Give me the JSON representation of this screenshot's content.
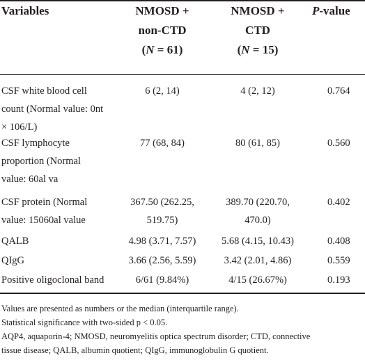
{
  "header": {
    "col_variables": "Variables",
    "col_nonctd": [
      "NMOSD +",
      "non-CTD",
      "(N = 61)"
    ],
    "col_ctd": [
      "NMOSD +",
      "CTD",
      "(N = 15)"
    ],
    "col_p": "P-value"
  },
  "rows": [
    {
      "variable": [
        "CSF white blood cell",
        "count (Normal value: 0nt",
        "× 106/L)"
      ],
      "nonctd": [
        "6 (2, 14)"
      ],
      "ctd": [
        "4 (2, 12)"
      ],
      "p": "0.764"
    },
    {
      "variable": [
        "CSF lymphocyte",
        "proportion (Normal",
        "value: 60al va"
      ],
      "nonctd": [
        "77 (68, 84)"
      ],
      "ctd": [
        "80 (61, 85)"
      ],
      "p": "0.560"
    },
    {
      "variable": [
        "CSF protein (Normal",
        "value: 15060al value"
      ],
      "nonctd": [
        "367.50 (262.25,",
        "519.75)"
      ],
      "ctd": [
        "389.70 (220.70,",
        "470.0)"
      ],
      "p": "0.402"
    },
    {
      "variable": [
        "QALB"
      ],
      "nonctd": [
        "4.98 (3.71, 7.57)"
      ],
      "ctd": [
        "5.68 (4.15, 10.43)"
      ],
      "p": "0.408"
    },
    {
      "variable": [
        "QIgG"
      ],
      "nonctd": [
        "3.66 (2.56, 5.59)"
      ],
      "ctd": [
        "3.42 (2.01, 4.86)"
      ],
      "p": "0.559"
    },
    {
      "variable": [
        "Positive oligoclonal band"
      ],
      "nonctd": [
        "6/61 (9.84%)"
      ],
      "ctd": [
        "4/15 (26.67%)"
      ],
      "p": "0.193"
    }
  ],
  "notes": [
    "Values are presented as numbers or the median (interquartile range).",
    "Statistical significance with two-sided p < 0.05.",
    "AQP4, aquaporin-4; NMOSD, neuromyelitis optica spectrum disorder; CTD, connective",
    "tissue disease; QALB, albumin quotient; QIgG, immunoglobulin G quotient."
  ]
}
